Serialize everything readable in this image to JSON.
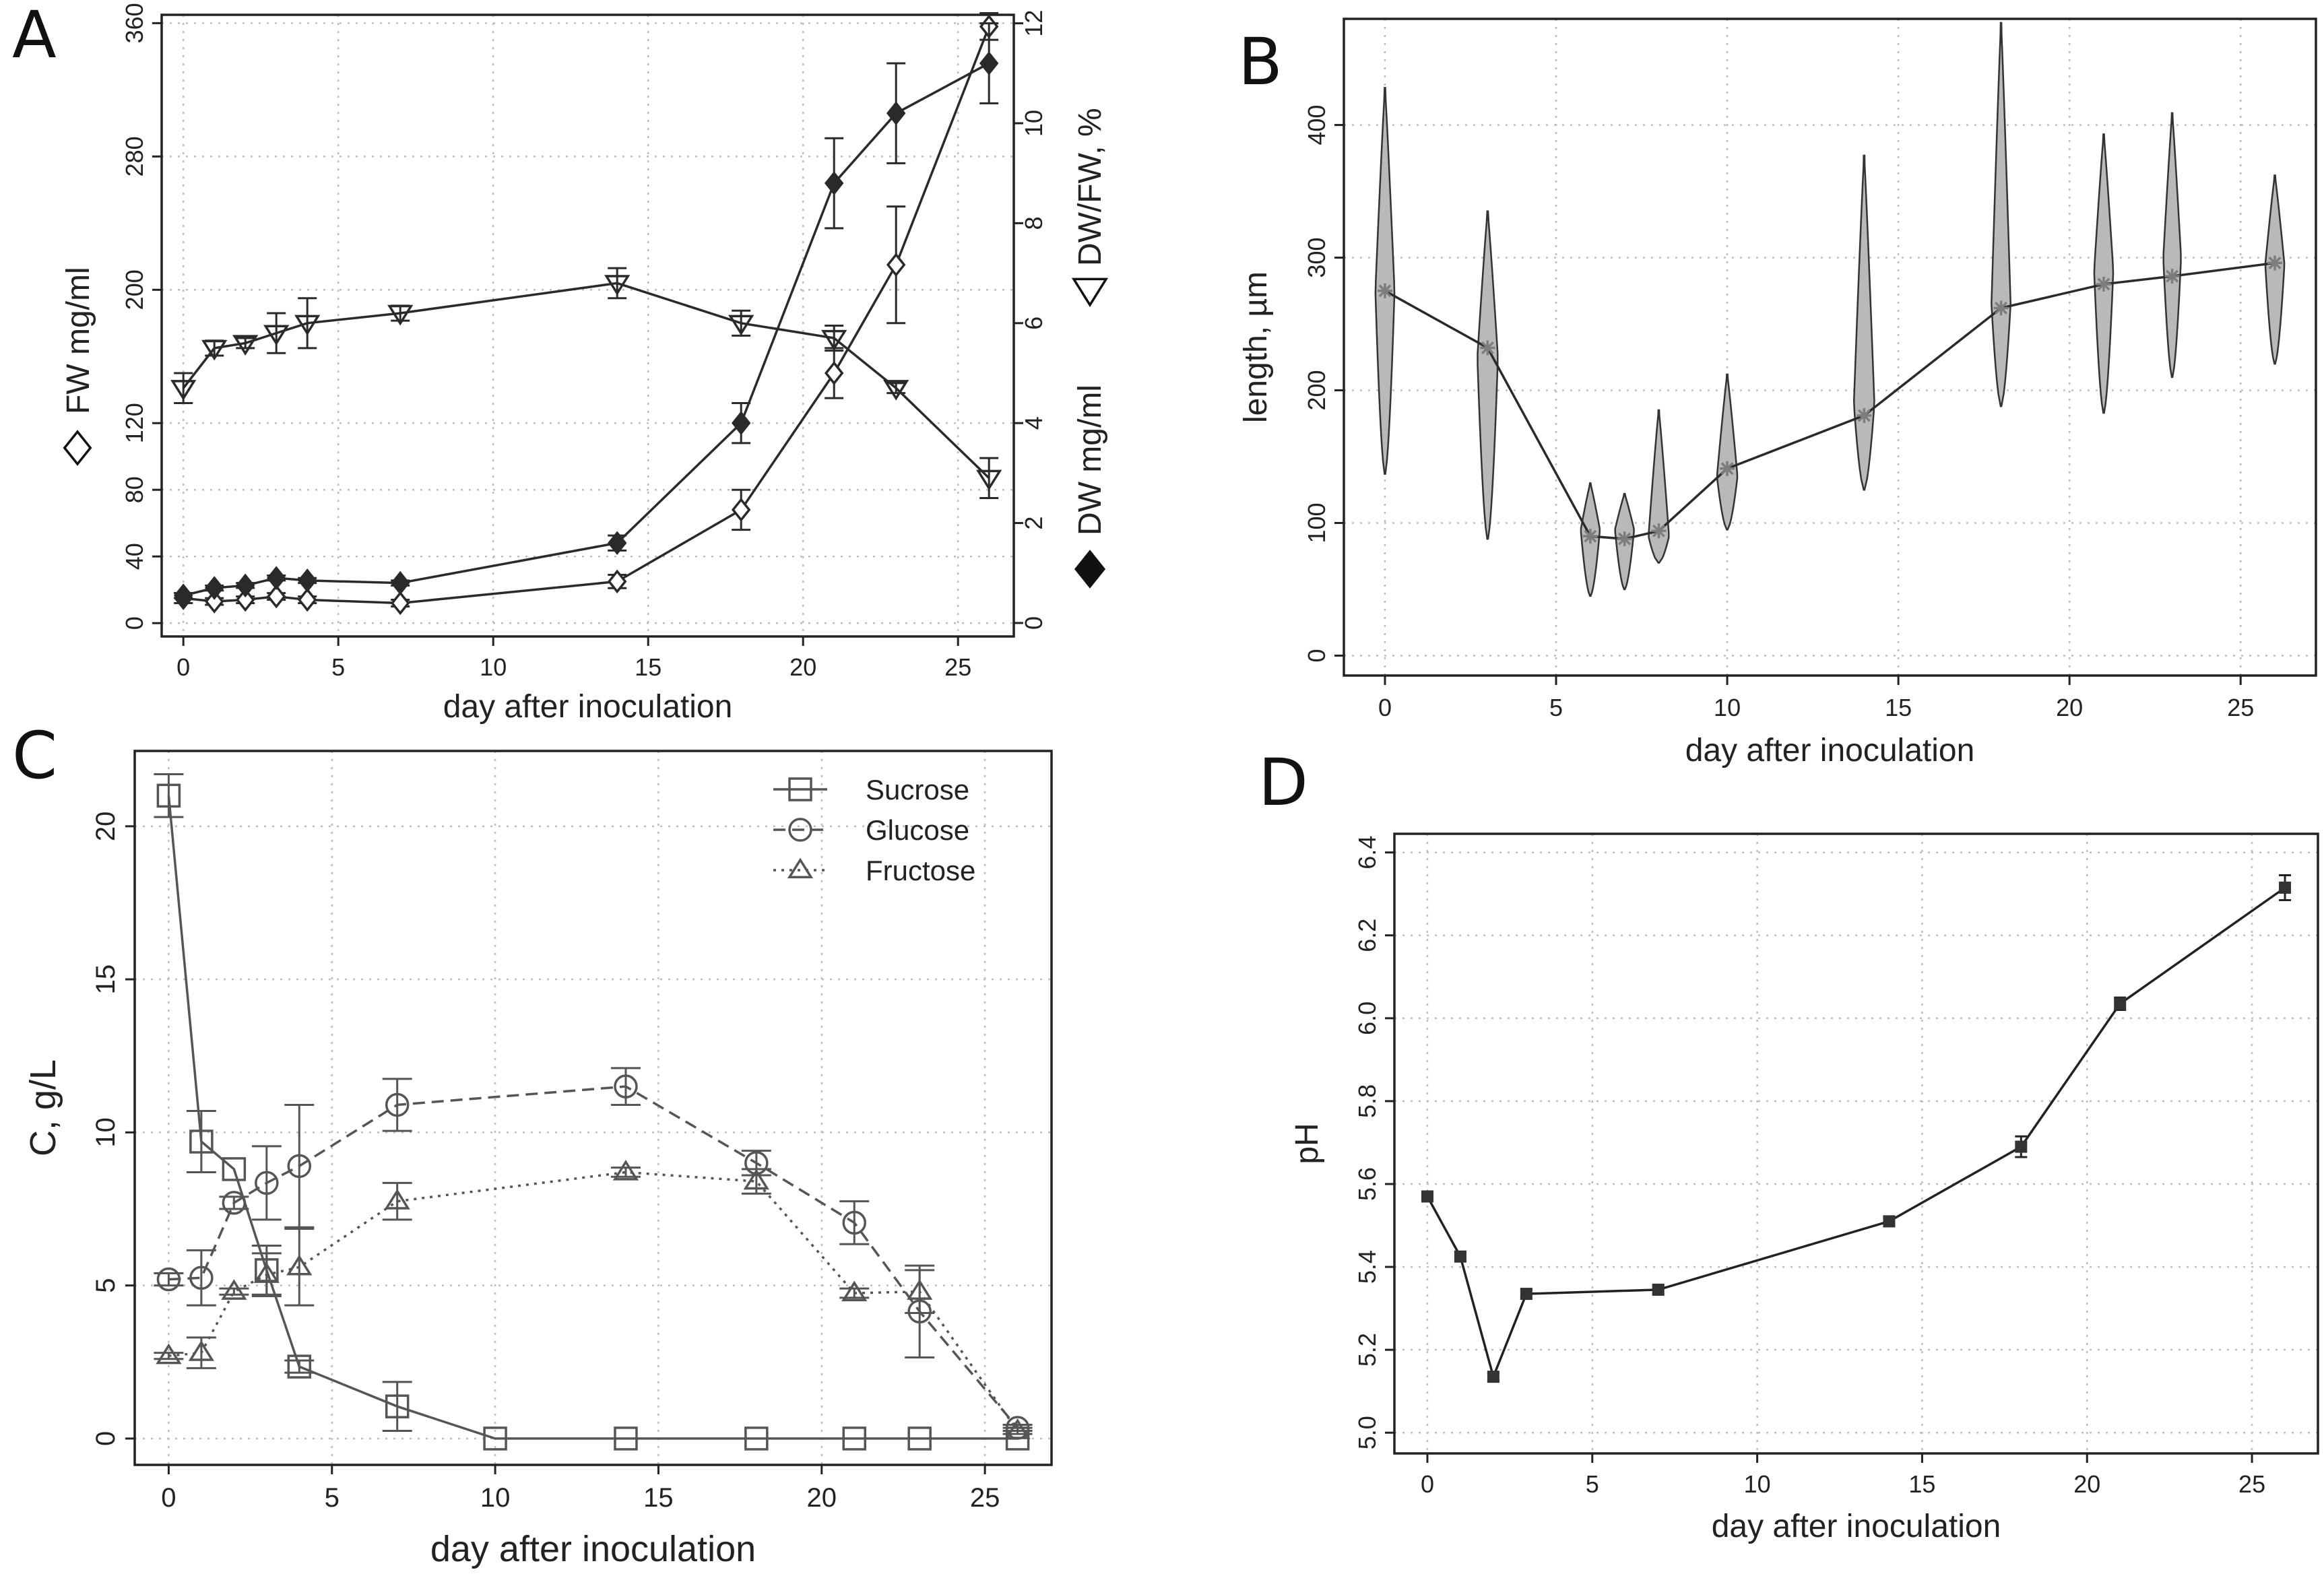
{
  "figure": {
    "panel_labels": [
      "A",
      "B",
      "C",
      "D"
    ]
  },
  "chart_data": [
    {
      "panel": "A",
      "type": "line",
      "xlabel": "day after inoculation",
      "x_ticks": [
        0,
        5,
        10,
        15,
        20,
        25
      ],
      "xlim": [
        -0.7,
        26.8
      ],
      "ylabel_left": "FW mg/ml",
      "ylabel_right": [
        "DW mg/ml",
        "DW/FW, %"
      ],
      "y_left_ticks": [
        0,
        40,
        80,
        120,
        200,
        280,
        360
      ],
      "y_left_lim": [
        -8,
        365
      ],
      "y_right_ticks": [
        0,
        2,
        4,
        6,
        8,
        10,
        12
      ],
      "y_right_lim": [
        -0.27,
        12.17
      ],
      "grid": true,
      "series": [
        {
          "name": "FW mg/ml",
          "marker": "diamond-open",
          "axis": "left",
          "x": [
            0,
            1,
            2,
            3,
            4,
            7,
            14,
            18,
            21,
            23,
            26
          ],
          "y": [
            15,
            13,
            14,
            16,
            14,
            12,
            25,
            68,
            150,
            215,
            358
          ],
          "err": [
            3,
            2,
            2,
            2,
            2,
            2,
            4,
            12,
            15,
            35,
            8
          ]
        },
        {
          "name": "DW mg/ml",
          "marker": "diamond-filled",
          "axis": "right",
          "x": [
            0,
            1,
            2,
            3,
            4,
            7,
            14,
            18,
            21,
            23,
            26
          ],
          "y": [
            0.55,
            0.7,
            0.75,
            0.9,
            0.85,
            0.8,
            1.6,
            4.0,
            8.8,
            10.2,
            11.2
          ],
          "err": [
            0.05,
            0.05,
            0.05,
            0.05,
            0.05,
            0.05,
            0.15,
            0.4,
            0.9,
            1.0,
            0.8
          ]
        },
        {
          "name": "DW/FW, %",
          "marker": "triangle-down-open",
          "axis": "right",
          "x": [
            0,
            1,
            2,
            3,
            4,
            7,
            14,
            18,
            21,
            23,
            26
          ],
          "y": [
            4.7,
            5.5,
            5.6,
            5.8,
            6.0,
            6.2,
            6.8,
            6.0,
            5.7,
            4.7,
            2.9
          ],
          "err": [
            0.3,
            0.15,
            0.1,
            0.4,
            0.5,
            0.15,
            0.3,
            0.25,
            0.25,
            0.1,
            0.4
          ]
        }
      ]
    },
    {
      "panel": "B",
      "type": "violin",
      "xlabel": "day after inoculation",
      "ylabel": "length, µm",
      "x_ticks": [
        0,
        5,
        10,
        15,
        20,
        25
      ],
      "y_ticks": [
        0,
        100,
        200,
        300,
        400
      ],
      "xlim": [
        -1.2,
        27.2
      ],
      "ylim": [
        -15,
        480
      ],
      "grid": true,
      "x": [
        0,
        3,
        6,
        7,
        8,
        10,
        14,
        18,
        21,
        23,
        26
      ],
      "mean": [
        275,
        232,
        90,
        88,
        94,
        141,
        181,
        262,
        280,
        286,
        296
      ],
      "min": [
        137,
        88,
        45,
        50,
        70,
        95,
        125,
        188,
        183,
        210,
        220
      ],
      "max": [
        428,
        335,
        130,
        122,
        185,
        212,
        377,
        477,
        393,
        409,
        362
      ],
      "mode": [
        275,
        225,
        95,
        95,
        90,
        135,
        190,
        265,
        290,
        300,
        295
      ],
      "max_half_width_days": [
        0.28,
        0.3,
        0.28,
        0.28,
        0.3,
        0.3,
        0.3,
        0.28,
        0.28,
        0.26,
        0.28
      ]
    },
    {
      "panel": "C",
      "type": "line",
      "xlabel": "day after inoculation",
      "ylabel": "C, g/L",
      "x_ticks": [
        0,
        5,
        10,
        15,
        20,
        25
      ],
      "y_ticks": [
        0,
        5,
        10,
        15,
        20
      ],
      "xlim": [
        -1.04,
        27.04
      ],
      "ylim": [
        -0.86,
        22.46
      ],
      "grid": true,
      "legend": {
        "position": "top-right",
        "entries": [
          "Sucrose",
          "Glucose",
          "Fructose"
        ]
      },
      "series": [
        {
          "name": "Sucrose",
          "marker": "square-open",
          "line": "solid",
          "x": [
            0,
            1,
            2,
            3,
            4,
            7,
            10,
            14,
            18,
            21,
            23,
            26
          ],
          "y": [
            21.0,
            9.7,
            8.8,
            5.5,
            2.35,
            1.05,
            0,
            0,
            0,
            0,
            0,
            0
          ],
          "err": [
            0.7,
            1.0,
            0.0,
            0.8,
            0.2,
            0.8,
            0,
            0,
            0,
            0,
            0,
            0
          ]
        },
        {
          "name": "Glucose",
          "marker": "circle-open",
          "line": "dashed",
          "x": [
            0,
            1,
            2,
            3,
            4,
            7,
            14,
            18,
            21,
            23,
            26
          ],
          "y": [
            5.2,
            5.25,
            7.7,
            8.35,
            8.9,
            10.9,
            11.5,
            9.0,
            7.05,
            4.15,
            0.35
          ],
          "err": [
            0.2,
            0.9,
            0.2,
            1.2,
            2.0,
            0.85,
            0.6,
            0.4,
            0.7,
            1.5,
            0.1
          ]
        },
        {
          "name": "Fructose",
          "marker": "triangle-open",
          "line": "dotted",
          "x": [
            0,
            1,
            2,
            3,
            4,
            7,
            14,
            18,
            21,
            23,
            26
          ],
          "y": [
            2.7,
            2.8,
            4.8,
            5.35,
            5.6,
            7.75,
            8.7,
            8.4,
            4.75,
            4.8,
            0.25
          ],
          "err": [
            0.1,
            0.5,
            0.1,
            0.7,
            1.25,
            0.6,
            0.15,
            0.4,
            0.15,
            0.7,
            0.1
          ]
        }
      ]
    },
    {
      "panel": "D",
      "type": "line",
      "xlabel": "day after inoculation",
      "ylabel": "pH",
      "x_ticks": [
        0,
        5,
        10,
        15,
        20,
        25
      ],
      "y_ticks": [
        5.0,
        5.2,
        5.4,
        5.6,
        5.8,
        6.0,
        6.2,
        6.4
      ],
      "y_tick_labels": [
        "5.0",
        "5.2",
        "5.4",
        "5.6",
        "5.8",
        "6.0",
        "6.2",
        "6.4"
      ],
      "xlim": [
        -1.0,
        27.0
      ],
      "ylim": [
        4.95,
        6.445
      ],
      "grid": true,
      "series": [
        {
          "name": "pH",
          "marker": "square-filled",
          "line": "solid",
          "x": [
            0,
            1,
            2,
            3,
            7,
            14,
            18,
            21,
            26
          ],
          "y": [
            5.57,
            5.425,
            5.135,
            5.335,
            5.345,
            5.51,
            5.69,
            6.035,
            6.315
          ],
          "err": [
            0.01,
            0.01,
            0.01,
            0.01,
            0.01,
            0.01,
            0.025,
            0.015,
            0.03
          ]
        }
      ]
    }
  ]
}
